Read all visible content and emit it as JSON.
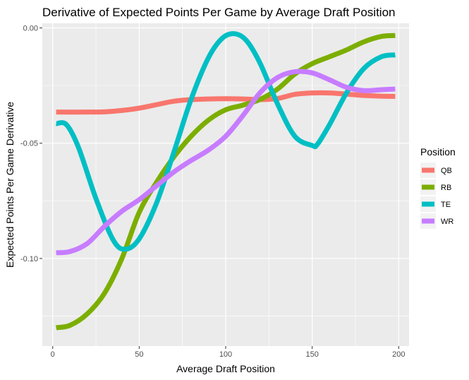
{
  "chart_data": {
    "type": "line",
    "title": "Derivative of Expected Points Per Game by Average Draft Position",
    "xlabel": "Average Draft Position",
    "ylabel": "Expected Points Per Game Derivative",
    "xlim": [
      -6,
      206
    ],
    "ylim": [
      -0.138,
      0.002
    ],
    "x_ticks": [
      {
        "value": 0,
        "label": "0"
      },
      {
        "value": 50,
        "label": "50"
      },
      {
        "value": 100,
        "label": "100"
      },
      {
        "value": 150,
        "label": "150"
      },
      {
        "value": 200,
        "label": "200"
      }
    ],
    "y_ticks": [
      {
        "value": 0,
        "label": "0.00"
      },
      {
        "value": -0.05,
        "label": "-0.05"
      },
      {
        "value": -0.1,
        "label": "-0.10"
      }
    ],
    "grid": true,
    "legend": {
      "title": "Position",
      "position": "right"
    },
    "series": [
      {
        "name": "QB",
        "color": "#F8766D",
        "x": [
          2,
          20,
          30,
          40,
          50,
          60,
          70,
          80,
          90,
          100,
          110,
          120,
          130,
          140,
          150,
          160,
          170,
          180,
          190,
          198
        ],
        "y": [
          -0.0365,
          -0.0365,
          -0.0364,
          -0.0358,
          -0.0348,
          -0.0333,
          -0.0318,
          -0.0311,
          -0.0308,
          -0.0307,
          -0.0308,
          -0.0311,
          -0.0306,
          -0.0288,
          -0.0282,
          -0.0282,
          -0.0287,
          -0.0293,
          -0.0296,
          -0.0297
        ]
      },
      {
        "name": "RB",
        "color": "#7CAE00",
        "x": [
          2,
          10,
          20,
          30,
          40,
          50,
          60,
          70,
          80,
          90,
          100,
          110,
          120,
          130,
          140,
          150,
          160,
          170,
          180,
          190,
          198
        ],
        "y": [
          -0.13,
          -0.129,
          -0.124,
          -0.115,
          -0.1,
          -0.08,
          -0.067,
          -0.056,
          -0.047,
          -0.04,
          -0.0355,
          -0.0335,
          -0.031,
          -0.0265,
          -0.02,
          -0.0155,
          -0.0125,
          -0.0095,
          -0.006,
          -0.0037,
          -0.0033
        ]
      },
      {
        "name": "TE",
        "color": "#00BFC4",
        "x": [
          2,
          8,
          15,
          25,
          35,
          42,
          50,
          60,
          70,
          80,
          90,
          98,
          105,
          112,
          120,
          130,
          140,
          150,
          153,
          160,
          170,
          180,
          190,
          198
        ],
        "y": [
          -0.0415,
          -0.042,
          -0.052,
          -0.074,
          -0.092,
          -0.096,
          -0.0915,
          -0.076,
          -0.054,
          -0.031,
          -0.013,
          -0.0045,
          -0.0025,
          -0.0055,
          -0.0155,
          -0.033,
          -0.047,
          -0.051,
          -0.0505,
          -0.042,
          -0.028,
          -0.0175,
          -0.0125,
          -0.0117
        ]
      },
      {
        "name": "WR",
        "color": "#C77CFF",
        "x": [
          2,
          10,
          20,
          30,
          40,
          50,
          60,
          70,
          80,
          90,
          100,
          110,
          120,
          130,
          140,
          150,
          160,
          170,
          180,
          190,
          198
        ],
        "y": [
          -0.0975,
          -0.097,
          -0.0935,
          -0.086,
          -0.0795,
          -0.0745,
          -0.0685,
          -0.0625,
          -0.0575,
          -0.053,
          -0.047,
          -0.038,
          -0.028,
          -0.0215,
          -0.019,
          -0.0195,
          -0.0225,
          -0.0258,
          -0.0272,
          -0.0268,
          -0.0265
        ]
      }
    ]
  }
}
